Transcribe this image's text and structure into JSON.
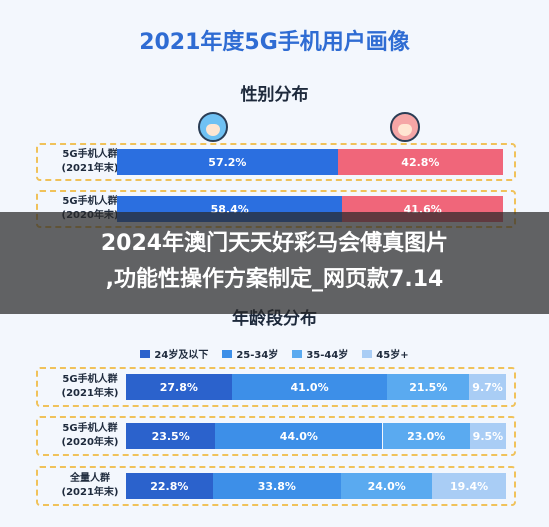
{
  "page": {
    "title": "2021年度5G手机用户画像"
  },
  "chart_data": [
    {
      "type": "bar",
      "title": "性别分布",
      "orientation": "horizontal-stacked",
      "categories": [
        "5G手机人群\n(2021年末)",
        "5G手机人群\n(2020年末)"
      ],
      "series": [
        {
          "values": [
            57.2,
            58.4
          ],
          "labels": [
            "57.2%",
            "58.4%"
          ],
          "color": "#2b6fe0"
        },
        {
          "values": [
            42.8,
            41.6
          ],
          "labels": [
            "42.8%",
            "41.6%"
          ],
          "color": "#f0667a"
        }
      ],
      "xlim": [
        0,
        100
      ]
    },
    {
      "type": "bar",
      "title": "年龄段分布",
      "orientation": "horizontal-stacked",
      "categories": [
        "5G手机人群\n(2021年末)",
        "5G手机人群\n(2020年末)",
        "全量人群\n(2021年末)"
      ],
      "series": [
        {
          "name": "24岁及以下",
          "values": [
            27.8,
            23.5,
            22.8
          ],
          "labels": [
            "27.8%",
            "23.5%",
            "22.8%"
          ],
          "color": "#2b62cc"
        },
        {
          "name": "25-34岁",
          "values": [
            41.0,
            44.0,
            33.8
          ],
          "labels": [
            "41.0%",
            "44.0%",
            "33.8%"
          ],
          "color": "#3d8fe8"
        },
        {
          "name": "35-44岁",
          "values": [
            21.5,
            23.0,
            24.0
          ],
          "labels": [
            "21.5%",
            "23.0%",
            "24.0%"
          ],
          "color": "#5aaaf0"
        },
        {
          "name": "45岁+",
          "values": [
            9.7,
            9.5,
            19.4
          ],
          "labels": [
            "9.7%",
            "9.5%",
            "19.4%"
          ],
          "color": "#a9cdf5"
        }
      ],
      "legend": "top",
      "xlim": [
        0,
        100
      ]
    }
  ],
  "overlay": {
    "line1": "2024年澳门天天好彩马会傅真图片",
    "line2": ",功能性操作方案制定_网页款7.14"
  }
}
